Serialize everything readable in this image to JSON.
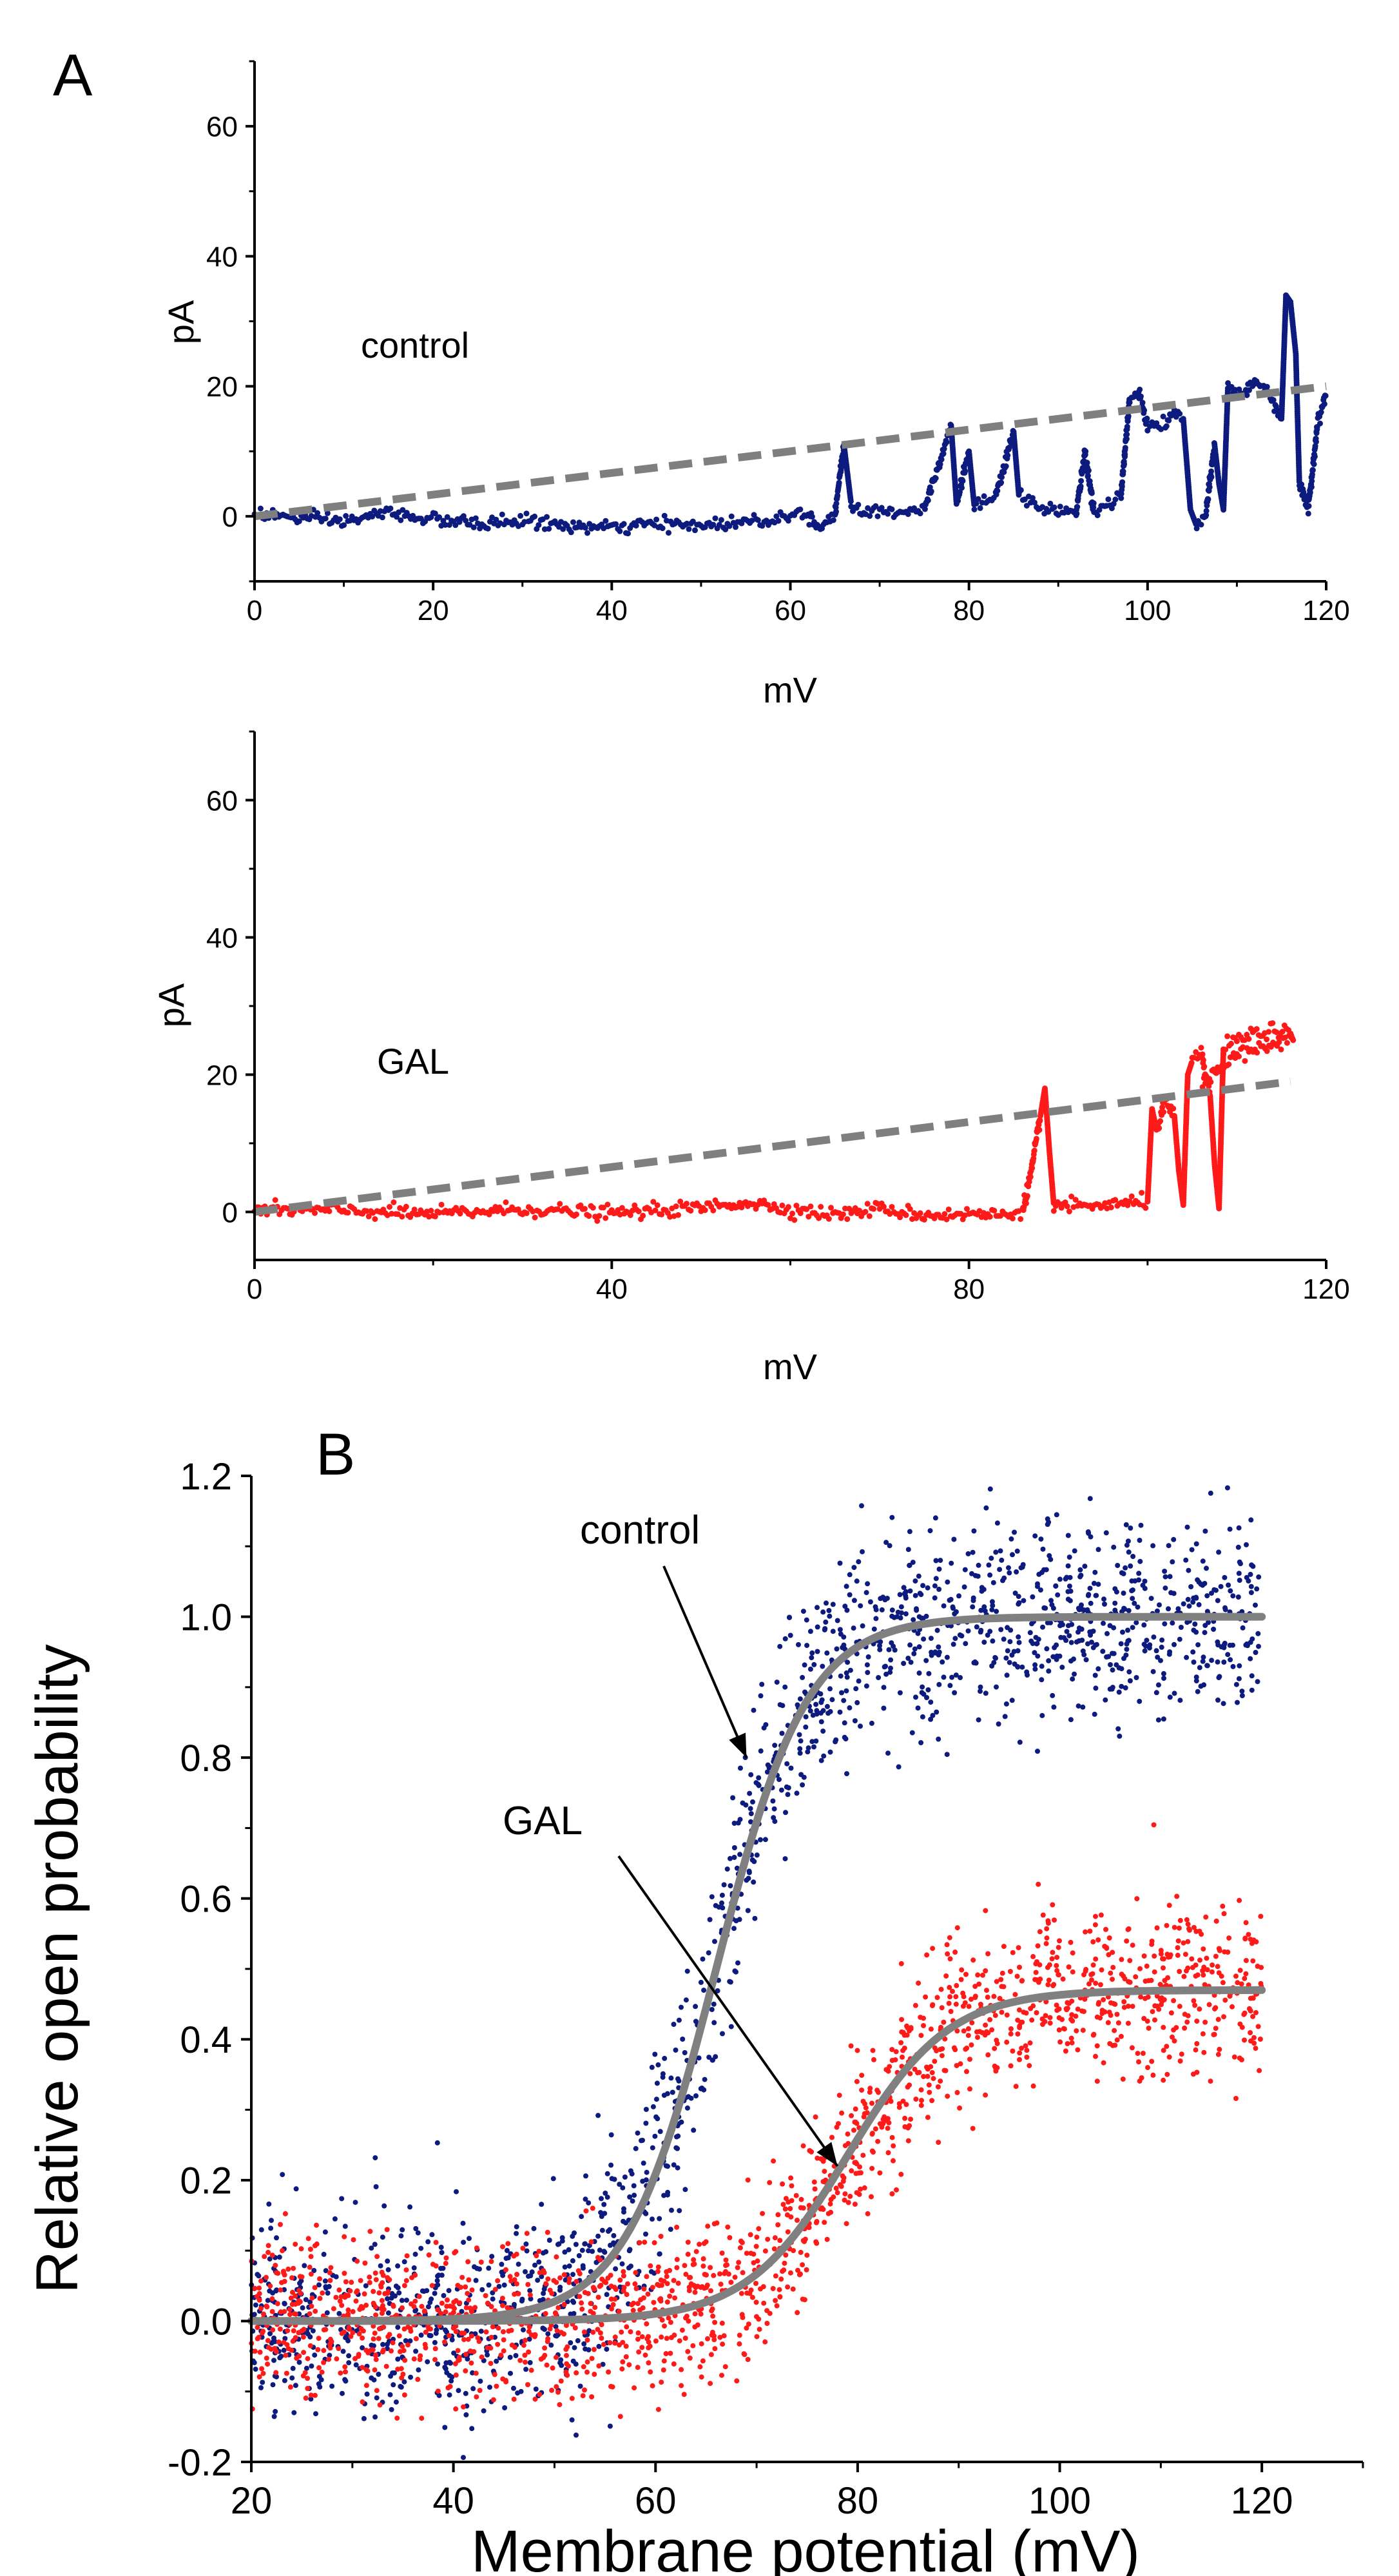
{
  "panels": {
    "a": {
      "letter": "A"
    },
    "b": {
      "letter": "B"
    }
  },
  "chart_data": [
    {
      "id": "chart-a-control",
      "type": "scatter",
      "title": "",
      "annotation": "control",
      "xlabel": "mV",
      "ylabel": "pA",
      "xlim": [
        0,
        120
      ],
      "ylim": [
        -10,
        70
      ],
      "xticks": [
        "0",
        "20",
        "40",
        "60",
        "80",
        "100",
        "120"
      ],
      "yticks": [
        "0",
        "20",
        "40",
        "60"
      ],
      "grid": false,
      "series": [
        {
          "name": "control current trace",
          "color": "#0d1a7e",
          "style": "dots",
          "points": [
            [
              0,
              0.5
            ],
            [
              5,
              -0.3
            ],
            [
              10,
              -0.8
            ],
            [
              15,
              0.6
            ],
            [
              20,
              -0.5
            ],
            [
              25,
              -1.2
            ],
            [
              30,
              -0.6
            ],
            [
              35,
              -1.5
            ],
            [
              40,
              -1.8
            ],
            [
              45,
              -1.2
            ],
            [
              50,
              -1.4
            ],
            [
              55,
              -0.8
            ],
            [
              58,
              -0.5
            ],
            [
              60,
              0.3
            ],
            [
              62,
              0.6
            ],
            [
              63,
              -1.8
            ],
            [
              65,
              0.5
            ],
            [
              66,
              11
            ],
            [
              66.8,
              2
            ],
            [
              68,
              0.8
            ],
            [
              70,
              0.5
            ],
            [
              75,
              1.2
            ],
            [
              78,
              14
            ],
            [
              78.6,
              2
            ],
            [
              80,
              10
            ],
            [
              80.6,
              1.5
            ],
            [
              83,
              2.8
            ],
            [
              85,
              13
            ],
            [
              85.6,
              3
            ],
            [
              88,
              1.5
            ],
            [
              90,
              1
            ],
            [
              92,
              0.3
            ],
            [
              93,
              10
            ],
            [
              94,
              0.5
            ],
            [
              96,
              2
            ],
            [
              97,
              3
            ],
            [
              98,
              18
            ],
            [
              99,
              19
            ],
            [
              100,
              14
            ],
            [
              101,
              14
            ],
            [
              102,
              14
            ],
            [
              103,
              16
            ],
            [
              104,
              15
            ],
            [
              104.8,
              1
            ],
            [
              105.5,
              -1.5
            ],
            [
              106.5,
              0
            ],
            [
              107.5,
              11
            ],
            [
              108,
              5
            ],
            [
              108.5,
              1
            ],
            [
              109,
              20
            ],
            [
              110,
              19
            ],
            [
              111,
              19
            ],
            [
              112,
              21
            ],
            [
              113,
              20
            ],
            [
              114,
              18
            ],
            [
              115,
              15
            ],
            [
              115.5,
              34
            ],
            [
              116,
              33
            ],
            [
              116.6,
              25
            ],
            [
              117,
              5
            ],
            [
              118,
              1
            ],
            [
              119,
              14
            ],
            [
              120,
              19
            ]
          ]
        },
        {
          "name": "control linear fit",
          "color": "#7f7f7f",
          "style": "dashed",
          "points": [
            [
              0,
              0
            ],
            [
              120,
              20
            ]
          ]
        }
      ]
    },
    {
      "id": "chart-a-gal",
      "type": "scatter",
      "title": "",
      "annotation": "GAL",
      "xlabel": "mV",
      "ylabel": "pA",
      "xlim": [
        0,
        120
      ],
      "ylim": [
        -7,
        70
      ],
      "xticks": [
        "0",
        "40",
        "80",
        "120"
      ],
      "yticks": [
        "0",
        "20",
        "40",
        "60"
      ],
      "grid": false,
      "series": [
        {
          "name": "GAL current trace",
          "color": "#ff1a1a",
          "style": "dots",
          "points": [
            [
              0,
              0.3
            ],
            [
              10,
              0.2
            ],
            [
              20,
              -0.3
            ],
            [
              30,
              0.4
            ],
            [
              40,
              -0.2
            ],
            [
              50,
              0.6
            ],
            [
              55,
              1.4
            ],
            [
              60,
              0.4
            ],
            [
              65,
              -0.4
            ],
            [
              70,
              0.5
            ],
            [
              75,
              -0.5
            ],
            [
              80,
              -0.3
            ],
            [
              84,
              -0.5
            ],
            [
              86,
              0.2
            ],
            [
              87,
              6
            ],
            [
              88,
              14
            ],
            [
              88.5,
              18
            ],
            [
              89,
              9
            ],
            [
              89.5,
              1
            ],
            [
              91,
              0.8
            ],
            [
              95,
              1
            ],
            [
              98,
              1.2
            ],
            [
              100,
              1.5
            ],
            [
              100.5,
              15
            ],
            [
              101,
              12
            ],
            [
              102,
              16
            ],
            [
              103,
              14
            ],
            [
              103.5,
              6
            ],
            [
              104,
              1
            ],
            [
              104.5,
              20
            ],
            [
              105,
              22
            ],
            [
              106,
              23
            ],
            [
              107,
              17
            ],
            [
              107.5,
              7
            ],
            [
              108,
              0.5
            ],
            [
              108.5,
              24
            ],
            [
              110,
              25
            ],
            [
              112,
              26
            ],
            [
              114,
              26.5
            ],
            [
              116,
              26
            ],
            [
              116.3,
              25
            ],
            [
              110,
              23
            ],
            [
              108,
              21
            ],
            [
              106,
              18
            ]
          ]
        },
        {
          "name": "GAL linear fit",
          "color": "#7f7f7f",
          "style": "dashed",
          "points": [
            [
              0,
              0
            ],
            [
              116,
              19
            ]
          ]
        }
      ]
    },
    {
      "id": "chart-b-probability",
      "type": "scatter",
      "title": "",
      "xlabel": "Membrane potential (mV)",
      "ylabel": "Relative open probability",
      "xlim": [
        20,
        130
      ],
      "ylim": [
        -0.2,
        1.2
      ],
      "xticks": [
        "20",
        "40",
        "60",
        "80",
        "100",
        "120"
      ],
      "yticks": [
        "-0.2",
        "0.0",
        "0.2",
        "0.4",
        "0.6",
        "0.8",
        "1.0",
        "1.2"
      ],
      "grid": false,
      "annotations": [
        {
          "text": "control",
          "target": [
            69,
            0.8
          ]
        },
        {
          "text": "GAL",
          "target": [
            78,
            0.22
          ]
        }
      ],
      "series": [
        {
          "name": "control",
          "color": "#0d1a7e",
          "style": "scatter",
          "x_range": [
            20,
            120
          ],
          "noise_sd": 0.07,
          "boltzmann": {
            "amplitude": 1.0,
            "v_half": 66,
            "slope": 4.5
          }
        },
        {
          "name": "GAL",
          "color": "#ff1a1a",
          "style": "scatter",
          "x_range": [
            20,
            120
          ],
          "noise_sd": 0.055,
          "boltzmann": {
            "amplitude": 0.47,
            "v_half": 79,
            "slope": 5
          }
        },
        {
          "name": "control fit",
          "color": "#808080",
          "style": "line",
          "boltzmann": {
            "amplitude": 1.0,
            "v_half": 66,
            "slope": 4.5
          }
        },
        {
          "name": "GAL fit",
          "color": "#808080",
          "style": "line",
          "boltzmann": {
            "amplitude": 0.47,
            "v_half": 79,
            "slope": 5
          }
        }
      ]
    }
  ]
}
